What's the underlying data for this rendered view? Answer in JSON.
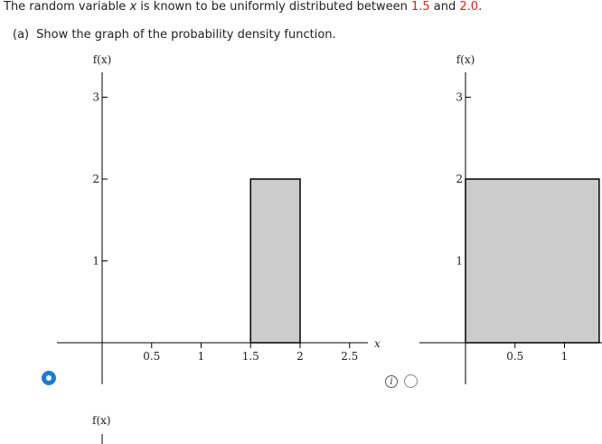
{
  "question": {
    "prefix": "The random variable ",
    "var": "x",
    "middle": " is known to be uniformly distributed between ",
    "low": "1.5",
    "and": " and ",
    "high": "2.0",
    "end": "."
  },
  "part_a": {
    "label": "(a)",
    "text": "Show the graph of the probability density function."
  },
  "graph1": {
    "ylabel": "f(x)",
    "xlabel": "x",
    "xticks": [
      "0.5",
      "1",
      "1.5",
      "2",
      "2.5"
    ],
    "yticks": [
      "1",
      "2",
      "3"
    ]
  },
  "graph2": {
    "ylabel": "f(x)",
    "xticks": [
      "0.5",
      "1"
    ],
    "yticks": [
      "1",
      "2",
      "3"
    ]
  },
  "graph3": {
    "ylabel": "f(x)"
  },
  "chart_data": [
    {
      "type": "area",
      "xlabel": "x",
      "ylabel": "f(x)",
      "x": [
        1.5,
        2.0
      ],
      "y": [
        2,
        2
      ],
      "xlim": [
        -0.5,
        2.8
      ],
      "ylim": [
        0,
        3.3
      ]
    },
    {
      "type": "area",
      "xlabel": "",
      "ylabel": "f(x)",
      "x": [
        0,
        1.35
      ],
      "y": [
        2,
        2
      ],
      "xlim": [
        -0.5,
        1.35
      ],
      "ylim": [
        0,
        3.3
      ]
    }
  ],
  "options": {
    "option1_selected": true,
    "option2_selected": false
  }
}
